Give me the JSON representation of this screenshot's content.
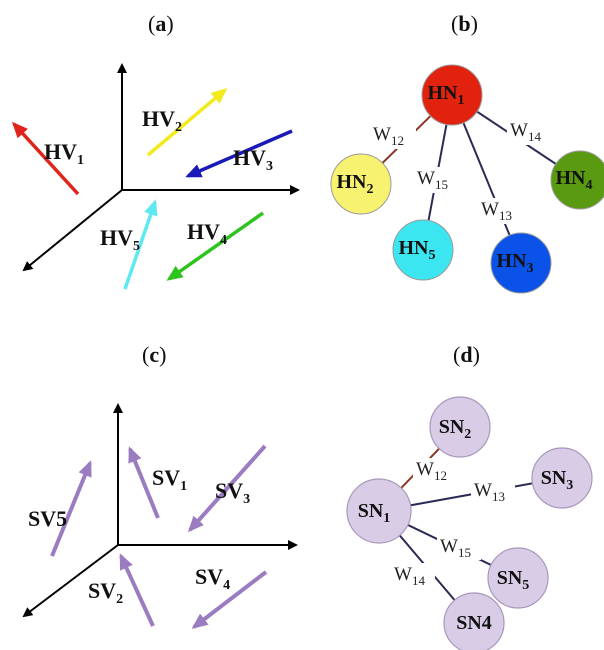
{
  "panels": {
    "a": {
      "label": "a",
      "vectors": [
        {
          "name": "HV",
          "sub": "1",
          "color": "#e0241b"
        },
        {
          "name": "HV",
          "sub": "2",
          "color": "#f2ea1d"
        },
        {
          "name": "HV",
          "sub": "3",
          "color": "#1a1ab8"
        },
        {
          "name": "HV",
          "sub": "4",
          "color": "#2ec41e"
        },
        {
          "name": "HV",
          "sub": "5",
          "color": "#5ee8f2"
        }
      ]
    },
    "b": {
      "label": "b",
      "nodes": [
        {
          "name": "HN",
          "sub": "1",
          "color": "#e0220f",
          "text_color": "#111111"
        },
        {
          "name": "HN",
          "sub": "2",
          "color": "#f7f270",
          "text_color": "#111111"
        },
        {
          "name": "HN",
          "sub": "3",
          "color": "#0a52e8",
          "text_color": "#ffffff"
        },
        {
          "name": "HN",
          "sub": "4",
          "color": "#5a9a10",
          "text_color": "#111111"
        },
        {
          "name": "HN",
          "sub": "5",
          "color": "#3ce6f0",
          "text_color": "#111111"
        }
      ],
      "edges": [
        {
          "label": "W",
          "sub": "12",
          "color": "#8a3a2a"
        },
        {
          "label": "W",
          "sub": "14",
          "color": "#2a2a55"
        },
        {
          "label": "W",
          "sub": "15",
          "color": "#2a2a55"
        },
        {
          "label": "W",
          "sub": "13",
          "color": "#2a2a55"
        }
      ]
    },
    "c": {
      "label": "c",
      "vector_color": "#9b7cc0",
      "vectors": [
        {
          "name": "SV",
          "sub": "1"
        },
        {
          "name": "SV",
          "sub": "2"
        },
        {
          "name": "SV",
          "sub": "3"
        },
        {
          "name": "SV",
          "sub": "4"
        },
        {
          "name": "SV5",
          "sub": ""
        }
      ]
    },
    "d": {
      "label": "d",
      "node_color": "#d8cce6",
      "nodes": [
        {
          "name": "SN",
          "sub": "1"
        },
        {
          "name": "SN",
          "sub": "2"
        },
        {
          "name": "SN",
          "sub": "3"
        },
        {
          "name": "SN",
          "sub": "5"
        },
        {
          "name": "SN4",
          "sub": ""
        }
      ],
      "edges": [
        {
          "label": "W",
          "sub": "12",
          "color": "#8a3a2a"
        },
        {
          "label": "W",
          "sub": "13",
          "color": "#2a2a55"
        },
        {
          "label": "W",
          "sub": "15",
          "color": "#2a2a55"
        },
        {
          "label": "W",
          "sub": "14",
          "color": "#2a2a55"
        }
      ]
    }
  }
}
